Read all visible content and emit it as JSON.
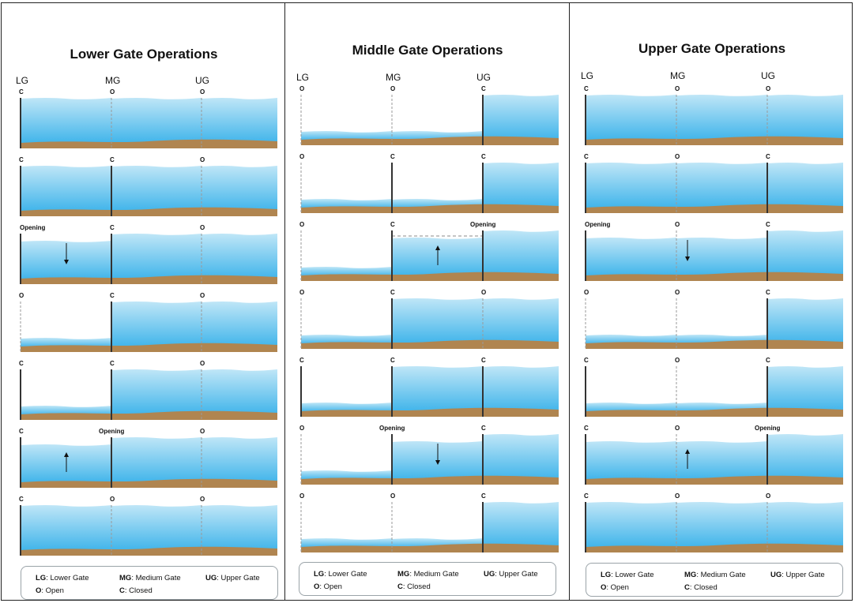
{
  "colors": {
    "water_top": "#bfe6f7",
    "water_bottom": "#3fb4ea",
    "soil": "#b08550",
    "gate": "#333333",
    "open_gate": "#9a9a9a",
    "legend_border": "#9aa3a8"
  },
  "icons": {
    "up": "arrow-up-icon",
    "down": "arrow-down-icon"
  },
  "gate_headers": [
    "LG",
    "MG",
    "UG"
  ],
  "legend": {
    "lg_key": "LG",
    "lg_text": ": Lower Gate",
    "mg_key": "MG",
    "mg_text": ": Medium Gate",
    "ug_key": "UG",
    "ug_text": ": Upper Gate",
    "o_key": "O",
    "o_text": ": Open",
    "c_key": "C",
    "c_text": ": Closed"
  },
  "panels": [
    {
      "title": "Lower Gate Operations",
      "rows": [
        {
          "states": [
            "C",
            "O",
            "O"
          ],
          "levels": [
            "H",
            "H",
            "H"
          ],
          "arrow": null
        },
        {
          "states": [
            "C",
            "C",
            "O"
          ],
          "levels": [
            "H",
            "H",
            "H"
          ],
          "arrow": null
        },
        {
          "states": [
            "Opening",
            "C",
            "O"
          ],
          "levels": [
            "M",
            "H",
            "H"
          ],
          "arrow": {
            "seg": 0,
            "dir": "down"
          }
        },
        {
          "states": [
            "O",
            "C",
            "O"
          ],
          "levels": [
            "L",
            "H",
            "H"
          ],
          "arrow": null
        },
        {
          "states": [
            "C",
            "C",
            "O"
          ],
          "levels": [
            "L",
            "H",
            "H"
          ],
          "arrow": null
        },
        {
          "states": [
            "C",
            "Opening",
            "O"
          ],
          "levels": [
            "M",
            "H",
            "H"
          ],
          "arrow": {
            "seg": 0,
            "dir": "up"
          }
        },
        {
          "states": [
            "C",
            "O",
            "O"
          ],
          "levels": [
            "H",
            "H",
            "H"
          ],
          "arrow": null
        }
      ]
    },
    {
      "title": "Middle Gate Operations",
      "rows": [
        {
          "states": [
            "O",
            "O",
            "C"
          ],
          "levels": [
            "L",
            "L",
            "H"
          ],
          "arrow": null
        },
        {
          "states": [
            "O",
            "C",
            "C"
          ],
          "levels": [
            "L",
            "L",
            "H"
          ],
          "arrow": null
        },
        {
          "states": [
            "O",
            "C",
            "Opening"
          ],
          "levels": [
            "L",
            "M",
            "H"
          ],
          "arrow": {
            "seg": 1,
            "dir": "up"
          }
        },
        {
          "states": [
            "O",
            "C",
            "O"
          ],
          "levels": [
            "L",
            "H",
            "H"
          ],
          "arrow": null
        },
        {
          "states": [
            "C",
            "C",
            "C"
          ],
          "levels": [
            "L",
            "H",
            "H"
          ],
          "arrow": null
        },
        {
          "states": [
            "O",
            "Opening",
            "C"
          ],
          "levels": [
            "L",
            "M",
            "H"
          ],
          "arrow": {
            "seg": 1,
            "dir": "down"
          }
        },
        {
          "states": [
            "O",
            "O",
            "C"
          ],
          "levels": [
            "L",
            "L",
            "H"
          ],
          "arrow": null
        }
      ]
    },
    {
      "title": "Upper Gate Operations",
      "rows": [
        {
          "states": [
            "C",
            "O",
            "O"
          ],
          "levels": [
            "H",
            "H",
            "H"
          ],
          "arrow": null
        },
        {
          "states": [
            "C",
            "O",
            "C"
          ],
          "levels": [
            "H",
            "H",
            "H"
          ],
          "arrow": null
        },
        {
          "states": [
            "Opening",
            "O",
            "C"
          ],
          "levels": [
            "M",
            "M",
            "H"
          ],
          "arrow": {
            "seg": 1,
            "dir": "down"
          }
        },
        {
          "states": [
            "O",
            "O",
            "C"
          ],
          "levels": [
            "L",
            "L",
            "H"
          ],
          "arrow": null
        },
        {
          "states": [
            "C",
            "O",
            "C"
          ],
          "levels": [
            "L",
            "L",
            "H"
          ],
          "arrow": null
        },
        {
          "states": [
            "C",
            "O",
            "Opening"
          ],
          "levels": [
            "M",
            "M",
            "H"
          ],
          "arrow": {
            "seg": 1,
            "dir": "up"
          }
        },
        {
          "states": [
            "C",
            "O",
            "O"
          ],
          "levels": [
            "H",
            "H",
            "H"
          ],
          "arrow": null
        }
      ]
    }
  ]
}
